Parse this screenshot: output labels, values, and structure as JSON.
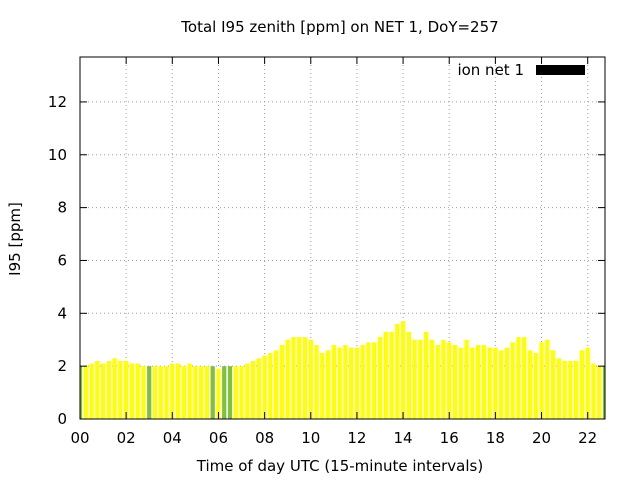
{
  "chart_data": {
    "type": "bar",
    "title": "Total I95 zenith [ppm] on NET 1, DoY=257",
    "xlabel": "Time of day UTC (15-minute intervals)",
    "ylabel": "I95 [ppm]",
    "xlim": [
      0,
      22.75
    ],
    "ylim": [
      0,
      13.7
    ],
    "xticks": [
      0,
      2,
      4,
      6,
      8,
      10,
      12,
      14,
      16,
      18,
      20,
      22
    ],
    "xtick_labels": [
      "00",
      "02",
      "04",
      "06",
      "08",
      "10",
      "12",
      "14",
      "16",
      "18",
      "20",
      "22"
    ],
    "yticks": [
      0,
      2,
      4,
      6,
      8,
      10,
      12
    ],
    "ytick_labels": [
      "0",
      "2",
      "4",
      "6",
      "8",
      "10",
      "12"
    ],
    "grid": true,
    "legend_position": "top-right",
    "series": [
      {
        "name": "ion net 1",
        "legend_color": "#000000",
        "bar_color": "#ffff00",
        "highlight_color": "#80c040",
        "x": [
          0,
          0.25,
          0.5,
          0.75,
          1,
          1.25,
          1.5,
          1.75,
          2,
          2.25,
          2.5,
          2.75,
          3,
          3.25,
          3.5,
          3.75,
          4,
          4.25,
          4.5,
          4.75,
          5,
          5.25,
          5.5,
          5.75,
          6,
          6.25,
          6.5,
          6.75,
          7,
          7.25,
          7.5,
          7.75,
          8,
          8.25,
          8.5,
          8.75,
          9,
          9.25,
          9.5,
          9.75,
          10,
          10.25,
          10.5,
          10.75,
          11,
          11.25,
          11.5,
          11.75,
          12,
          12.25,
          12.5,
          12.75,
          13,
          13.25,
          13.5,
          13.75,
          14,
          14.25,
          14.5,
          14.75,
          15,
          15.25,
          15.5,
          15.75,
          16,
          16.25,
          16.5,
          16.75,
          17,
          17.25,
          17.5,
          17.75,
          18,
          18.25,
          18.5,
          18.75,
          19,
          19.25,
          19.5,
          19.75,
          20,
          20.25,
          20.5,
          20.75,
          21,
          21.25,
          21.5,
          21.75,
          22,
          22.25,
          22.5,
          22.75
        ],
        "values": [
          2.0,
          2.0,
          2.1,
          2.2,
          2.1,
          2.2,
          2.3,
          2.2,
          2.2,
          2.1,
          2.1,
          2.0,
          2.0,
          2.0,
          2.0,
          2.0,
          2.1,
          2.1,
          2.0,
          2.1,
          2.0,
          2.0,
          2.0,
          2.0,
          1.9,
          2.0,
          2.0,
          2.0,
          2.0,
          2.1,
          2.2,
          2.3,
          2.4,
          2.5,
          2.6,
          2.8,
          3.0,
          3.1,
          3.1,
          3.1,
          3.0,
          2.8,
          2.5,
          2.6,
          2.8,
          2.7,
          2.8,
          2.7,
          2.7,
          2.8,
          2.9,
          2.9,
          3.1,
          3.3,
          3.3,
          3.6,
          3.7,
          3.3,
          3.0,
          3.0,
          3.3,
          3.0,
          2.8,
          3.0,
          2.9,
          2.8,
          2.7,
          3.0,
          2.7,
          2.8,
          2.8,
          2.7,
          2.7,
          2.6,
          2.7,
          2.9,
          3.1,
          3.1,
          2.6,
          2.5,
          2.9,
          3.0,
          2.6,
          2.3,
          2.2,
          2.2,
          2.2,
          2.6,
          2.7,
          2.1,
          2.0,
          2.0
        ],
        "highlight_x": [
          0,
          3,
          5.75,
          6.25,
          6.5,
          22.75
        ]
      }
    ]
  }
}
